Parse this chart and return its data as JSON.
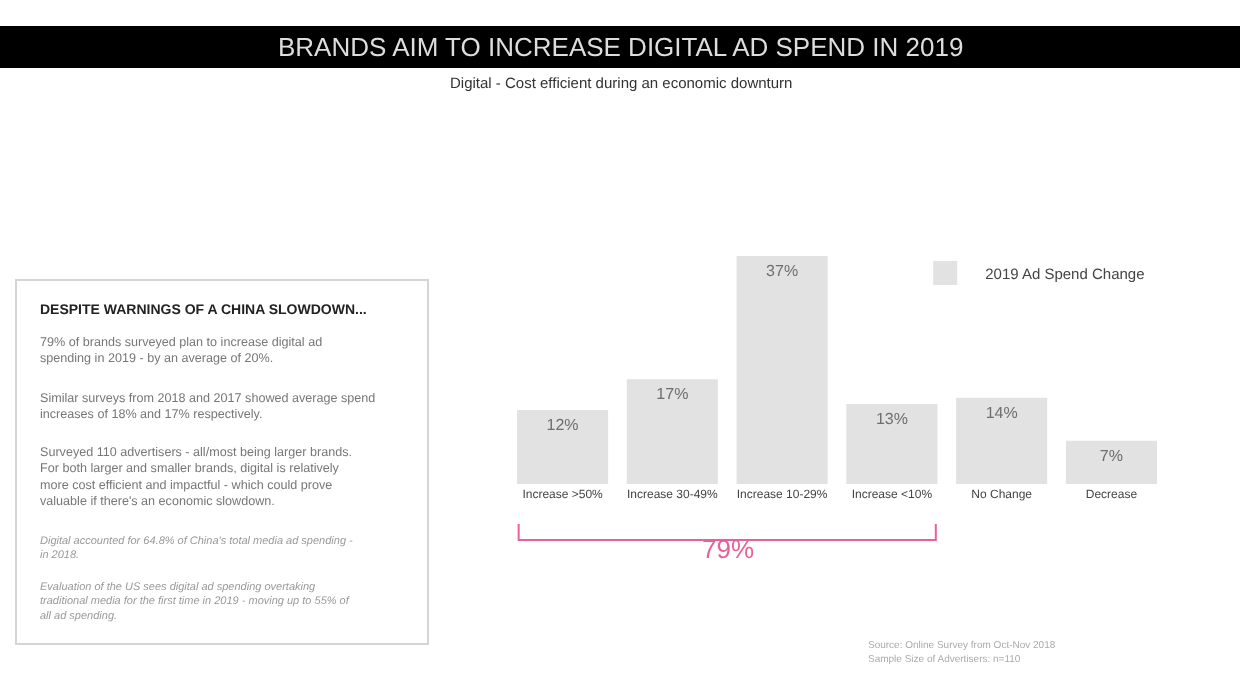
{
  "chart_data": {
    "type": "bar",
    "title": "BRANDS AIM TO INCREASE DIGITAL AD SPEND IN 2019",
    "subtitle": "Digital - Cost efficient during an economic downturn",
    "categories": [
      "Increase >50%",
      "Increase 30-49%",
      "Increase 10-29%",
      "Increase <10%",
      "No Change",
      "Decrease"
    ],
    "series": [
      {
        "name": "2019 Ad Spend Change",
        "color": "#e2e2e2",
        "values": [
          12,
          17,
          37,
          13,
          14,
          7
        ],
        "value_labels": [
          "12%",
          "17%",
          "37%",
          "13%",
          "14%",
          "7%"
        ]
      }
    ],
    "legend": "top right",
    "tick_labels": "x",
    "annotations": [
      "DESPITE WARNINGS OF A CHINA SLOWDOWN...",
      "79% of brands surveyed plan to increase digital ad spending in 2019 - by an average of 20%.",
      "Similar surveys from 2018 and 2017 showed average spend increases of 18% and 17% respectively.",
      "Surveyed 110 advertisers - all/most being larger brands. For both larger and smaller brands, digital is relatively more cost efficient and impactful - which could prove valuable if there's an economic slowdown.",
      "Digital accounted for 64.8% of China's total media ad spending - in 2018.",
      "Evaluation of the US sees digital ad spending overtaking traditional media for the first time in 2019 - moving up to 55% of all ad spending.",
      "79%",
      "Source: Online Survey from Oct-Nov 2018",
      "Sample Size of Advertisers: n=110"
    ]
  }
}
